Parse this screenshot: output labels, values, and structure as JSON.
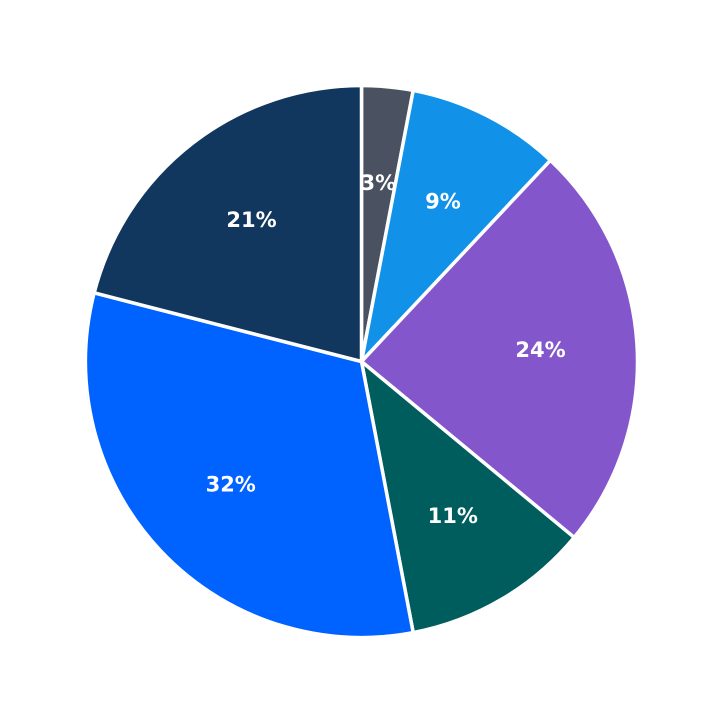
{
  "chart_data": {
    "type": "pie",
    "start_angle_deg": 90,
    "direction": "clockwise",
    "slices": [
      {
        "label": "3%",
        "value": 3,
        "color": "#4a5262"
      },
      {
        "label": "9%",
        "value": 9,
        "color": "#1192e8"
      },
      {
        "label": "24%",
        "value": 24,
        "color": "#8456cc"
      },
      {
        "label": "11%",
        "value": 11,
        "color": "#005d5d"
      },
      {
        "label": "32%",
        "value": 32,
        "color": "#0062ff"
      },
      {
        "label": "21%",
        "value": 21,
        "color": "#12375f"
      }
    ]
  }
}
